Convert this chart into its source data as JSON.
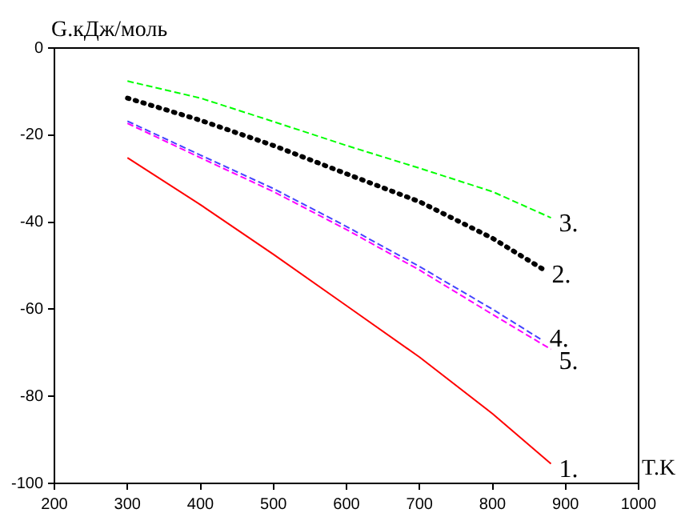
{
  "chart_data": {
    "type": "line",
    "xlabel": "T.K",
    "ylabel": "G.кДж/моль",
    "xlim": [
      200,
      1000
    ],
    "xticks": [
      200,
      300,
      400,
      500,
      600,
      700,
      800,
      900,
      1000
    ],
    "ylim": [
      -100,
      0
    ],
    "yticks": [
      -100,
      -80,
      -60,
      -40,
      -20,
      0
    ],
    "grid": false,
    "legend": false,
    "marker": "none",
    "series": [
      {
        "name": "1.",
        "color": "#ff0000",
        "line_style": "solid",
        "x": [
          300,
          400,
          500,
          600,
          700,
          800,
          880
        ],
        "values": [
          -25.2,
          -36,
          -47.4,
          -59.2,
          -71,
          -84,
          -95.5
        ]
      },
      {
        "name": "2.",
        "color": "#000000",
        "line_style": "dotted",
        "x": [
          300,
          400,
          500,
          600,
          700,
          800,
          870
        ],
        "values": [
          -11.5,
          -16.6,
          -22.4,
          -28.9,
          -35.3,
          -43.7,
          -50.9
        ]
      },
      {
        "name": "3.",
        "color": "#00ff00",
        "line_style": "dashed",
        "x": [
          300,
          400,
          500,
          600,
          700,
          800,
          880
        ],
        "values": [
          -7.6,
          -11.5,
          -16.9,
          -22.4,
          -27.6,
          -33,
          -39
        ]
      },
      {
        "name": "4.",
        "color": "#4444ff",
        "line_style": "dashed",
        "x": [
          300,
          400,
          500,
          600,
          700,
          800,
          867
        ],
        "values": [
          -16.8,
          -24.6,
          -32.3,
          -41,
          -50.2,
          -60,
          -67
        ]
      },
      {
        "name": "5.",
        "color": "#ff00ff",
        "line_style": "dashed",
        "x": [
          300,
          400,
          500,
          600,
          700,
          800,
          880
        ],
        "values": [
          -17.3,
          -25.2,
          -33,
          -41.7,
          -51,
          -61.2,
          -69.2
        ]
      }
    ]
  }
}
